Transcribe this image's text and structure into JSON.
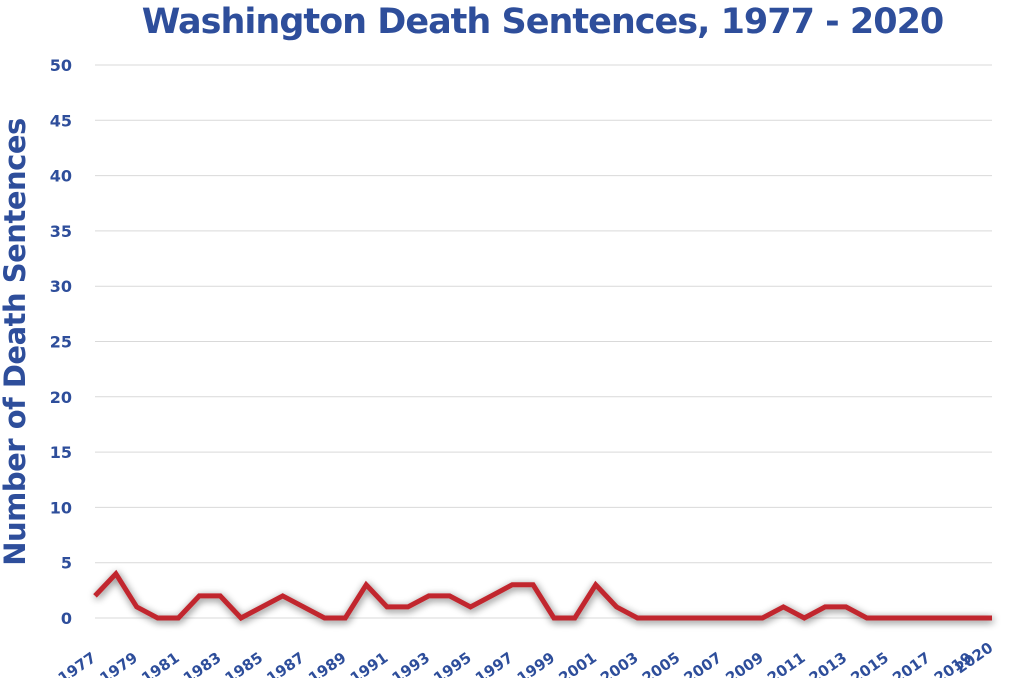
{
  "chart_data": {
    "type": "line",
    "title": "Washington Death Sentences, 1977 - 2020",
    "xlabel": "",
    "ylabel": "Number of Death Sentences",
    "ylim": [
      0,
      50
    ],
    "y_ticks": [
      0,
      5,
      10,
      15,
      20,
      25,
      30,
      35,
      40,
      45,
      50
    ],
    "x_tick_labels": [
      "1977",
      "1979",
      "1981",
      "1983",
      "1985",
      "1987",
      "1989",
      "1991",
      "1993",
      "1995",
      "1997",
      "1999",
      "2001",
      "2003",
      "2005",
      "2007",
      "2009",
      "2011",
      "2013",
      "2015",
      "2017",
      "2019",
      "2020"
    ],
    "grid": "horizontal",
    "legend": "none",
    "line_color": "#c1272d",
    "text_color": "#2e4e9b",
    "series": [
      {
        "x": [
          1977,
          1978,
          1979,
          1980,
          1981,
          1982,
          1983,
          1984,
          1985,
          1986,
          1987,
          1988,
          1989,
          1990,
          1991,
          1992,
          1993,
          1994,
          1995,
          1996,
          1997,
          1998,
          1999,
          2000,
          2001,
          2002,
          2003,
          2004,
          2005,
          2006,
          2007,
          2008,
          2009,
          2010,
          2011,
          2012,
          2013,
          2014,
          2015,
          2016,
          2017,
          2018,
          2019,
          2020
        ],
        "values": [
          2,
          4,
          1,
          0,
          0,
          2,
          2,
          0,
          1,
          2,
          1,
          0,
          0,
          3,
          1,
          1,
          2,
          2,
          1,
          2,
          3,
          3,
          0,
          0,
          3,
          1,
          0,
          0,
          0,
          0,
          0,
          0,
          0,
          1,
          0,
          1,
          1,
          0,
          0,
          0,
          0,
          0,
          0,
          0
        ]
      }
    ]
  }
}
